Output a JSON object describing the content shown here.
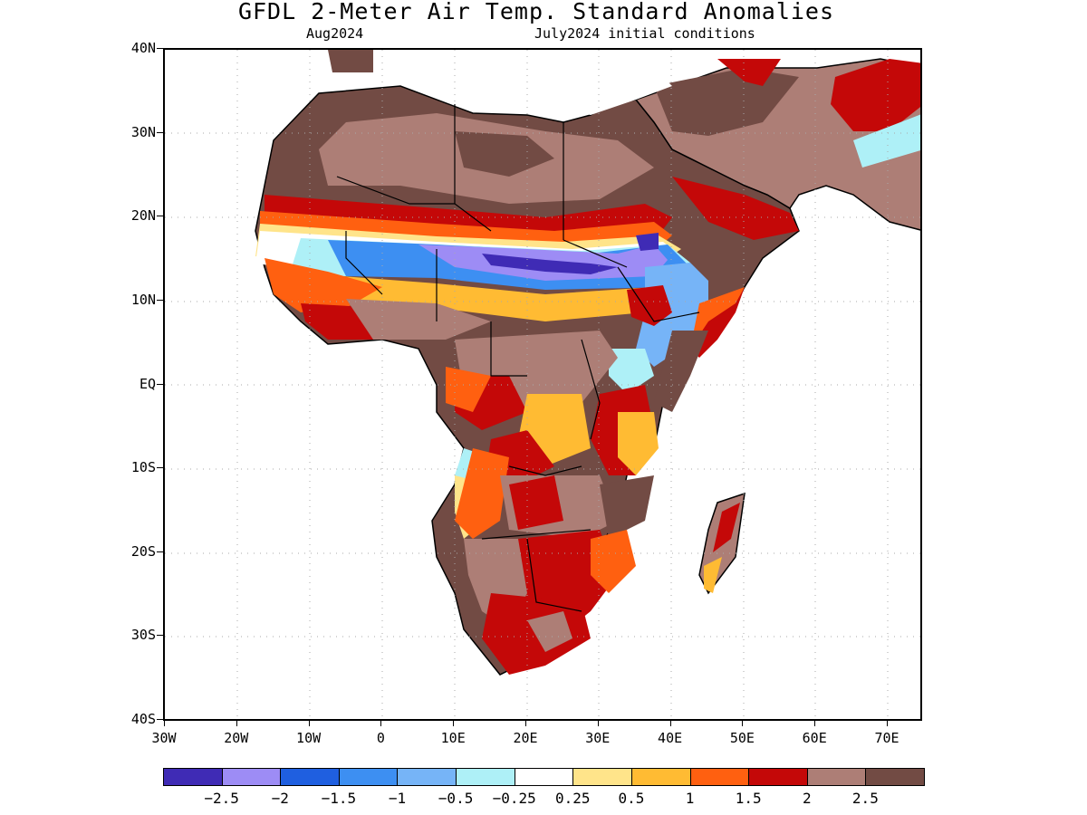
{
  "title": "GFDL 2-Meter Air Temp. Standard Anomalies",
  "subtitle_left": "Aug2024",
  "subtitle_right": "July2024 initial conditions",
  "lat_labels": [
    "40N",
    "30N",
    "20N",
    "10N",
    "EQ",
    "10S",
    "20S",
    "30S",
    "40S"
  ],
  "lon_labels": [
    "30W",
    "20W",
    "10W",
    "0",
    "10E",
    "20E",
    "30E",
    "40E",
    "50E",
    "60E",
    "70E"
  ],
  "colorbar": {
    "labels": [
      "-2.5",
      "-2",
      "-1.5",
      "-1",
      "-0.5",
      "-0.25",
      "0.25",
      "0.5",
      "1",
      "1.5",
      "2",
      "2.5"
    ],
    "colors": [
      "#3f2bb5",
      "#9d8cf5",
      "#1f5fe0",
      "#3d8ff2",
      "#76b4f7",
      "#aef0f7",
      "#ffffff",
      "#ffe48a",
      "#ffbb33",
      "#ff6010",
      "#c40808",
      "#ad7e76",
      "#724b44"
    ]
  },
  "map_data": {
    "region": "Africa",
    "lat_range": [
      -40,
      40
    ],
    "lon_range": [
      -30,
      75
    ],
    "variable": "2-meter air temperature standard anomaly"
  }
}
